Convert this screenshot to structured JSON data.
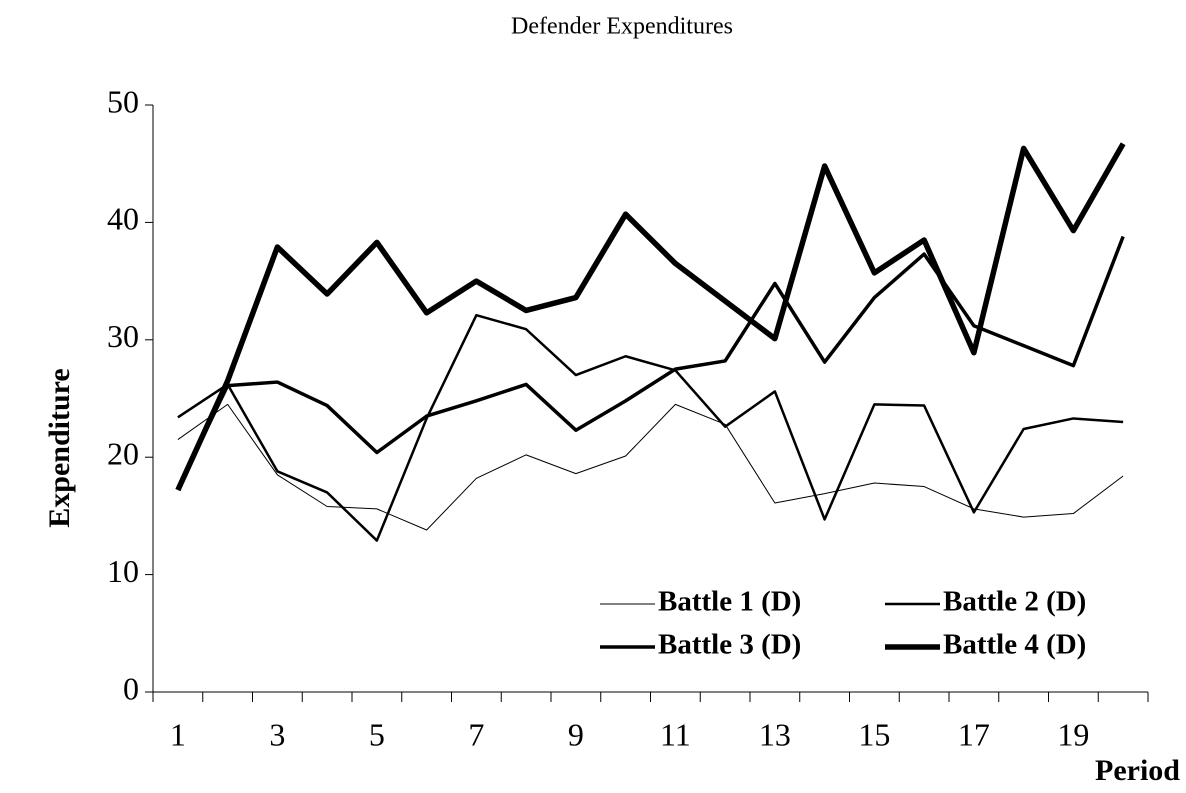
{
  "chart_data": {
    "type": "line",
    "title": "Defender Expenditures",
    "x_label": "Period",
    "y_label": "Expenditure",
    "categories": [
      "1",
      null,
      "3",
      null,
      "5",
      null,
      "7",
      null,
      "9",
      null,
      "11",
      null,
      "13",
      null,
      "15",
      null,
      "17",
      null,
      "19",
      null
    ],
    "series": [
      {
        "name": "Battle 1 (D)",
        "color": "#000000",
        "width": 1,
        "values": [
          21.5,
          24.5,
          18.5,
          15.8,
          15.6,
          13.8,
          18.2,
          20.2,
          18.6,
          20.1,
          24.5,
          22.8,
          16.1,
          16.9,
          17.8,
          17.5,
          15.6,
          14.9,
          15.2,
          18.4
        ]
      },
      {
        "name": "Battle 2 (D)",
        "color": "#000000",
        "width": 2.5,
        "values": [
          23.4,
          26.2,
          18.8,
          17.0,
          12.9,
          23.3,
          32.1,
          30.9,
          27.0,
          28.6,
          27.4,
          22.6,
          25.6,
          14.7,
          24.5,
          24.4,
          15.3,
          22.4,
          23.3,
          23.0
        ]
      },
      {
        "name": "Battle 3 (D)",
        "color": "#000000",
        "width": 3.5,
        "values": [
          17.3,
          26.1,
          26.4,
          24.4,
          20.4,
          23.5,
          24.8,
          26.2,
          22.3,
          24.8,
          27.5,
          28.2,
          34.8,
          28.1,
          33.6,
          37.3,
          31.2,
          29.5,
          27.8,
          38.8
        ]
      },
      {
        "name": "Battle 4 (D)",
        "color": "#000000",
        "width": 5.5,
        "values": [
          17.2,
          26.5,
          37.9,
          33.9,
          38.3,
          32.3,
          35.0,
          32.5,
          33.6,
          40.7,
          36.5,
          33.3,
          30.1,
          44.8,
          35.7,
          38.5,
          28.9,
          46.3,
          39.3,
          46.7
        ]
      }
    ],
    "ylim": [
      0,
      50
    ],
    "yticks": [
      0,
      10,
      20,
      30,
      40,
      50
    ],
    "grid": false,
    "legend": "bottom-right"
  }
}
